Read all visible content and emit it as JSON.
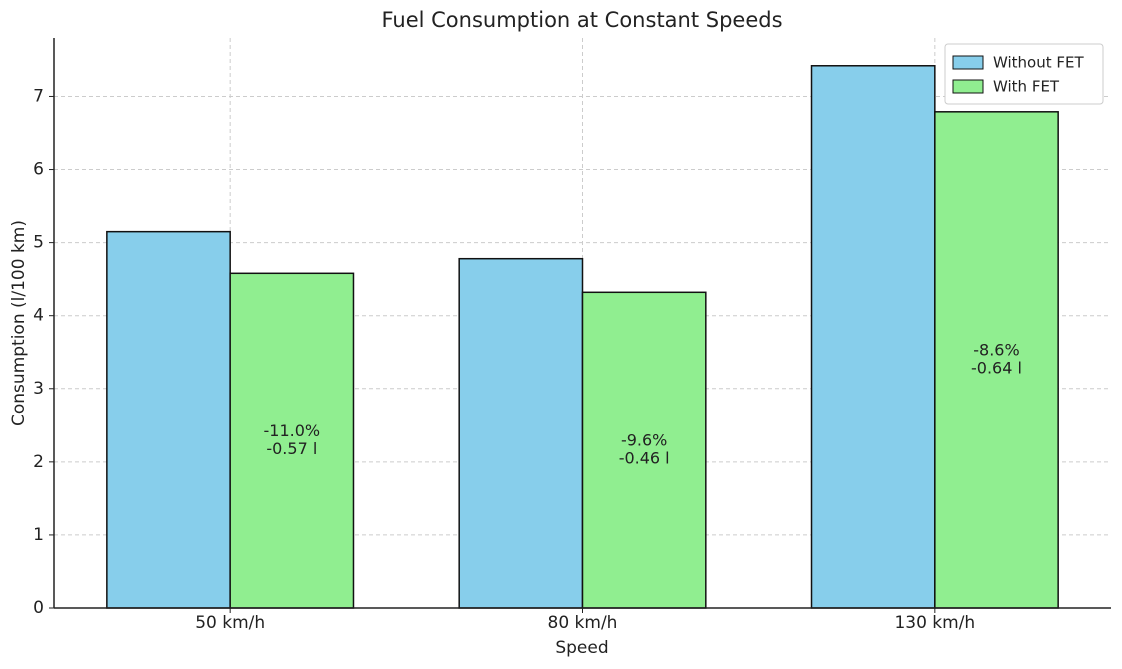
{
  "chart_data": {
    "type": "bar",
    "title": "Fuel Consumption at Constant Speeds",
    "x_label": "Speed",
    "y_label": "Consumption (l/100 km)",
    "categories": [
      "50 km/h",
      "80 km/h",
      "130 km/h"
    ],
    "series": [
      {
        "name": "Without FET",
        "color": "#87ceeb",
        "values": [
          5.15,
          4.78,
          7.42
        ]
      },
      {
        "name": "With FET",
        "color": "#90ee90",
        "values": [
          4.58,
          4.32,
          6.79
        ]
      }
    ],
    "annotations": [
      [
        "-11.0%",
        "-0.57 l"
      ],
      [
        "-9.6%",
        "-0.46 l"
      ],
      [
        "-8.6%",
        "-0.64 l"
      ]
    ],
    "ylim": [
      0,
      7.8
    ],
    "yticks": [
      0,
      1,
      2,
      3,
      4,
      5,
      6,
      7
    ],
    "grid": true,
    "legend": "upper right"
  }
}
